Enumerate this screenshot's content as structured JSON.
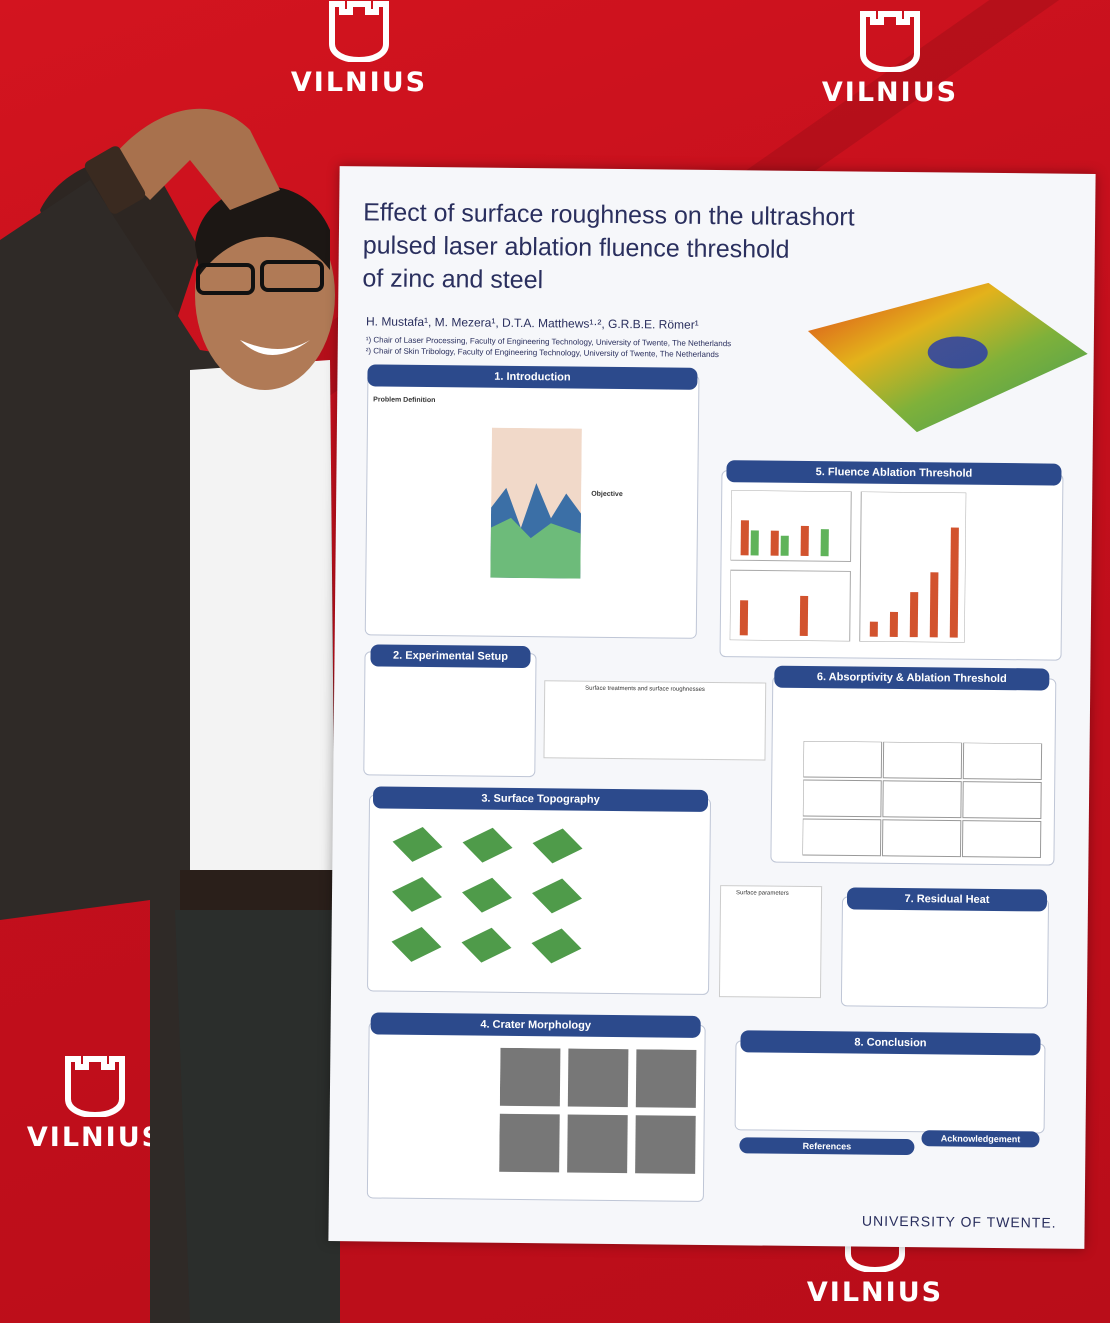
{
  "backdrop": {
    "brand_color": "#c8121f",
    "logo_word": "VILNIUS"
  },
  "poster": {
    "title_line1": "Effect of surface roughness on the ultrashort",
    "title_line2": "pulsed laser ablation fluence threshold",
    "title_line3": "of zinc and steel",
    "authors": "H. Mustafa¹, M. Mezera¹, D.T.A. Matthews¹·², G.R.B.E. Römer¹",
    "affiliation1": "¹) Chair of Laser Processing, Faculty of Engineering Technology, University of Twente, The Netherlands",
    "affiliation2": "²) Chair of Skin Tribology, Faculty of Engineering Technology, University of Twente, The Netherlands",
    "sections": {
      "s1": "1. Introduction",
      "s2": "2. Experimental Setup",
      "s3": "3. Surface Topography",
      "s4": "4. Crater Morphology",
      "s5": "5. Fluence Ablation Threshold",
      "s6": "6. Absorptivity & Ablation Threshold",
      "s7": "7. Residual Heat",
      "s8": "8. Conclusion",
      "refs": "References",
      "ack": "Acknowledgement"
    },
    "intro_heading": "Problem Definition",
    "objective_heading": "Objective",
    "table_title": "Surface treatments and surface roughnesses",
    "params_title": "Surface parameters",
    "university": "UNIVERSITY OF TWENTE."
  }
}
